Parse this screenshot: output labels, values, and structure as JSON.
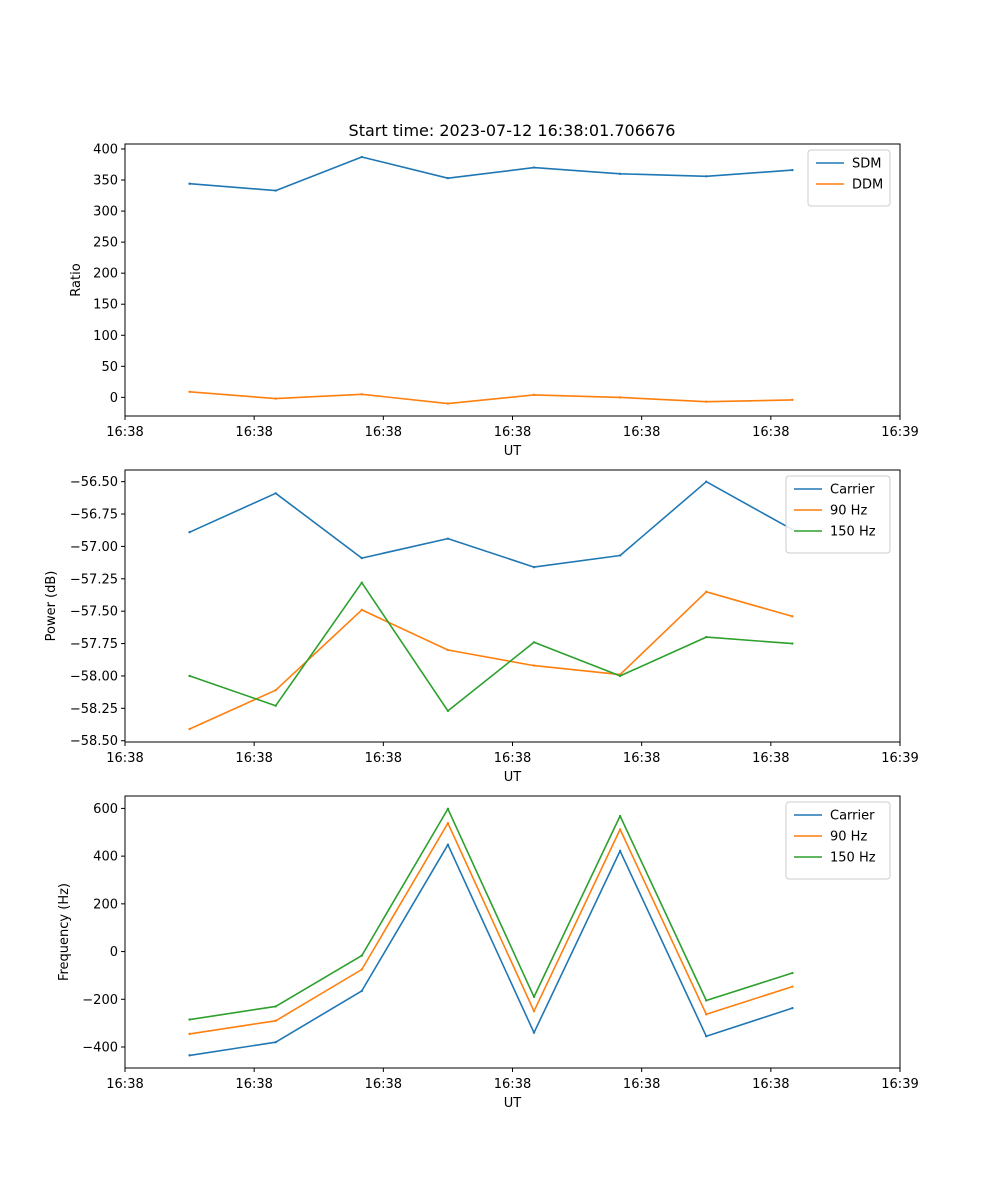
{
  "figure_title": "Start time: 2023-07-12 16:38:01.706676",
  "chart_data": [
    {
      "type": "line",
      "title": "Start time: 2023-07-12 16:38:01.706676",
      "xlabel": "UT",
      "ylabel": "Ratio",
      "xlim": [
        -0.5,
        8.5
      ],
      "ylim": [
        -30,
        408
      ],
      "x": [
        0.25,
        1.25,
        2.25,
        3.25,
        4.25,
        5.25,
        6.25,
        7.25
      ],
      "xticks": [
        -0.5,
        1.0,
        2.5,
        4.0,
        5.5,
        7.0,
        8.5
      ],
      "xtick_labels": [
        "16:38",
        "16:38",
        "16:38",
        "16:38",
        "16:38",
        "16:38",
        "16:39"
      ],
      "yticks": [
        0,
        50,
        100,
        150,
        200,
        250,
        300,
        350,
        400
      ],
      "ytick_labels": [
        "0",
        "50",
        "100",
        "150",
        "200",
        "250",
        "300",
        "350",
        "400"
      ],
      "legend_position": "top-right",
      "series": [
        {
          "name": "SDM",
          "color": "#1f77b4",
          "values": [
            344,
            333,
            387,
            353,
            370,
            360,
            356,
            366
          ]
        },
        {
          "name": "DDM",
          "color": "#ff7f0e",
          "values": [
            9,
            -2,
            5,
            -10,
            4,
            0,
            -7,
            -4
          ]
        }
      ]
    },
    {
      "type": "line",
      "title": "",
      "xlabel": "UT",
      "ylabel": "Power (dB)",
      "xlim": [
        -0.5,
        8.5
      ],
      "ylim": [
        -58.51,
        -56.41
      ],
      "x": [
        0.25,
        1.25,
        2.25,
        3.25,
        4.25,
        5.25,
        6.25,
        7.25
      ],
      "xticks": [
        -0.5,
        1.0,
        2.5,
        4.0,
        5.5,
        7.0,
        8.5
      ],
      "xtick_labels": [
        "16:38",
        "16:38",
        "16:38",
        "16:38",
        "16:38",
        "16:38",
        "16:39"
      ],
      "yticks": [
        -56.5,
        -56.75,
        -57.0,
        -57.25,
        -57.5,
        -57.75,
        -58.0,
        -58.25,
        -58.5
      ],
      "ytick_labels": [
        "−56.50",
        "−56.75",
        "−57.00",
        "−57.25",
        "−57.50",
        "−57.75",
        "−58.00",
        "−58.25",
        "−58.50"
      ],
      "legend_position": "top-right",
      "series": [
        {
          "name": "Carrier",
          "color": "#1f77b4",
          "values": [
            -56.89,
            -56.59,
            -57.09,
            -56.94,
            -57.16,
            -57.07,
            -56.5,
            -56.87
          ]
        },
        {
          "name": "90 Hz",
          "color": "#ff7f0e",
          "values": [
            -58.41,
            -58.11,
            -57.49,
            -57.8,
            -57.92,
            -57.99,
            -57.35,
            -57.54
          ]
        },
        {
          "name": "150 Hz",
          "color": "#2ca02c",
          "values": [
            -58.0,
            -58.23,
            -57.28,
            -58.27,
            -57.74,
            -58.0,
            -57.7,
            -57.75
          ]
        }
      ]
    },
    {
      "type": "line",
      "title": "",
      "xlabel": "UT",
      "ylabel": "Frequency (Hz)",
      "xlim": [
        -0.5,
        8.5
      ],
      "ylim": [
        -488,
        652
      ],
      "x": [
        0.25,
        1.25,
        2.25,
        3.25,
        4.25,
        5.25,
        6.25,
        7.25
      ],
      "xticks": [
        -0.5,
        1.0,
        2.5,
        4.0,
        5.5,
        7.0,
        8.5
      ],
      "xtick_labels": [
        "16:38",
        "16:38",
        "16:38",
        "16:38",
        "16:38",
        "16:38",
        "16:39"
      ],
      "yticks": [
        -400,
        -200,
        0,
        200,
        400,
        600
      ],
      "ytick_labels": [
        "−400",
        "−200",
        "0",
        "200",
        "400",
        "600"
      ],
      "legend_position": "top-right",
      "series": [
        {
          "name": "Carrier",
          "color": "#1f77b4",
          "values": [
            -435,
            -380,
            -165,
            448,
            -340,
            422,
            -355,
            -237
          ]
        },
        {
          "name": "90 Hz",
          "color": "#ff7f0e",
          "values": [
            -345,
            -290,
            -75,
            538,
            -250,
            512,
            -263,
            -147
          ]
        },
        {
          "name": "150 Hz",
          "color": "#2ca02c",
          "values": [
            -285,
            -230,
            -17,
            598,
            -190,
            568,
            -205,
            -90
          ]
        }
      ]
    }
  ]
}
